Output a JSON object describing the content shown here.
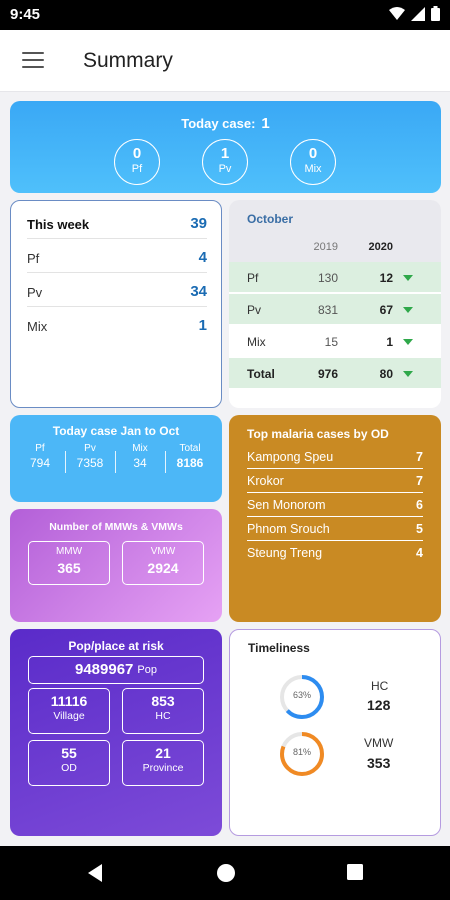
{
  "status": {
    "time": "9:45"
  },
  "appbar": {
    "title": "Summary"
  },
  "today": {
    "label": "Today case:",
    "value": "1",
    "items": [
      {
        "value": "0",
        "label": "Pf"
      },
      {
        "value": "1",
        "label": "Pv"
      },
      {
        "value": "0",
        "label": "Mix"
      }
    ]
  },
  "week": {
    "title": "This week",
    "total": "39",
    "rows": [
      {
        "label": "Pf",
        "value": "4"
      },
      {
        "label": "Pv",
        "value": "34"
      },
      {
        "label": "Mix",
        "value": "1"
      }
    ]
  },
  "october": {
    "title": "October",
    "year_prev": "2019",
    "year_curr": "2020",
    "rows": [
      {
        "label": "Pf",
        "prev": "130",
        "curr": "12"
      },
      {
        "label": "Pv",
        "prev": "831",
        "curr": "67"
      },
      {
        "label": "Mix",
        "prev": "15",
        "curr": "1"
      },
      {
        "label": "Total",
        "prev": "976",
        "curr": "80"
      }
    ],
    "trend_color": "#2fa84a"
  },
  "janoct": {
    "title": "Today case Jan to Oct",
    "cols": [
      {
        "label": "Pf",
        "value": "794"
      },
      {
        "label": "Pv",
        "value": "7358"
      },
      {
        "label": "Mix",
        "value": "34"
      },
      {
        "label": "Total",
        "value": "8186"
      }
    ]
  },
  "top_od": {
    "title": "Top malaria cases by OD",
    "rows": [
      {
        "name": "Kampong Speu",
        "count": "7"
      },
      {
        "name": "Krokor",
        "count": "7"
      },
      {
        "name": "Sen Monorom",
        "count": "6"
      },
      {
        "name": "Phnom Srouch",
        "count": "5"
      },
      {
        "name": "Steung Treng",
        "count": "4"
      }
    ]
  },
  "mmw": {
    "title": "Number of MMWs & VMWs",
    "mmw": {
      "label": "MMW",
      "value": "365"
    },
    "vmw": {
      "label": "VMW",
      "value": "2924"
    }
  },
  "risk": {
    "title": "Pop/place at risk",
    "pop": {
      "value": "9489967",
      "label": "Pop"
    },
    "village": {
      "value": "11116",
      "label": "Village"
    },
    "hc": {
      "value": "853",
      "label": "HC"
    },
    "od": {
      "value": "55",
      "label": "OD"
    },
    "province": {
      "value": "21",
      "label": "Province"
    }
  },
  "timeliness": {
    "title": "Timeliness",
    "hc": {
      "percent_label": "63%",
      "percent": 63,
      "label": "HC",
      "value": "128",
      "color": "#2d8cf0"
    },
    "vmw": {
      "percent_label": "81%",
      "percent": 81,
      "label": "VMW",
      "value": "353",
      "color": "#f08a24"
    }
  }
}
